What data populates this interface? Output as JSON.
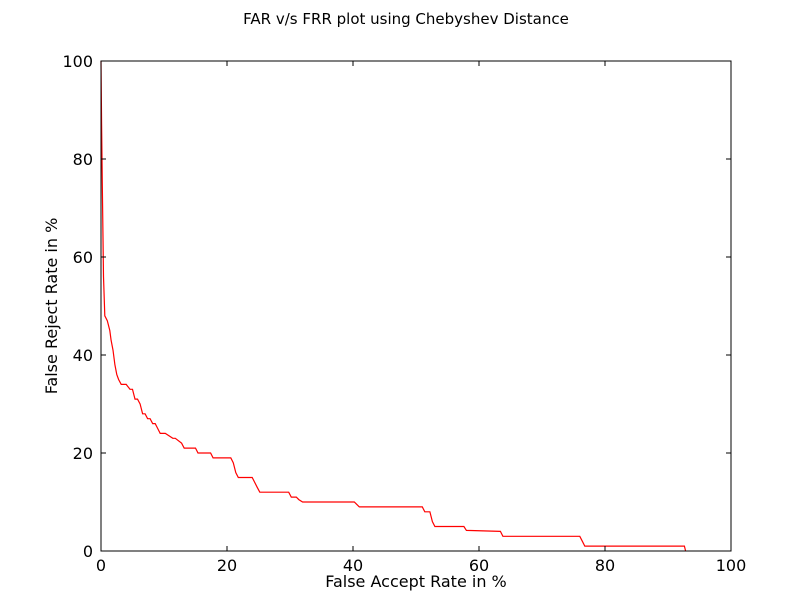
{
  "chart_data": {
    "type": "line",
    "title": "FAR v/s FRR plot using Chebyshev Distance",
    "xlabel": "False Accept Rate in %",
    "ylabel": "False Reject Rate in %",
    "xlim": [
      0,
      100
    ],
    "ylim": [
      0,
      100
    ],
    "xticks": [
      "0",
      "20",
      "40",
      "60",
      "80",
      "100"
    ],
    "yticks": [
      "0",
      "20",
      "40",
      "60",
      "80",
      "100"
    ],
    "grid": false,
    "legend": "none",
    "series": [
      {
        "color": "#ff0000",
        "x": [
          0,
          0.1,
          0.2,
          0.4,
          0.6,
          1.0,
          1.4,
          1.6,
          1.9,
          2.2,
          2.5,
          2.8,
          3.2,
          3.6,
          4.0,
          4.6,
          5.0,
          5.4,
          5.8,
          6.2,
          6.6,
          7.0,
          7.4,
          7.8,
          8.2,
          8.6,
          9.0,
          9.4,
          9.8,
          10.2,
          11.4,
          11.8,
          12.8,
          13.2,
          15.0,
          15.4,
          17.4,
          17.8,
          20.6,
          21.0,
          21.4,
          21.8,
          22.4,
          24.0,
          24.4,
          24.8,
          25.2,
          25.6,
          29.8,
          30.2,
          31.0,
          31.4,
          32.0,
          32.4,
          40.2,
          40.6,
          41.0,
          51.0,
          51.4,
          52.2,
          52.6,
          53.0,
          57.6,
          58.0,
          63.4,
          63.8,
          76.0,
          76.4,
          76.8,
          77.2,
          92.6,
          92.8
        ],
        "y": [
          100,
          87,
          75,
          56,
          48,
          47,
          45,
          43,
          41,
          38,
          36,
          35,
          34,
          34,
          34,
          33,
          33,
          31,
          31,
          30,
          28,
          28,
          27,
          27,
          26,
          26,
          25,
          24,
          24,
          24,
          23,
          23,
          22,
          21,
          21,
          20,
          20,
          19,
          19,
          18,
          16,
          15,
          15,
          15,
          14,
          13,
          12,
          12,
          12,
          11,
          11,
          10.5,
          10,
          10,
          10,
          9.5,
          9,
          9,
          8,
          8,
          6,
          5,
          5,
          4.2,
          4,
          3,
          3,
          2,
          1,
          1,
          1,
          0
        ]
      }
    ]
  }
}
